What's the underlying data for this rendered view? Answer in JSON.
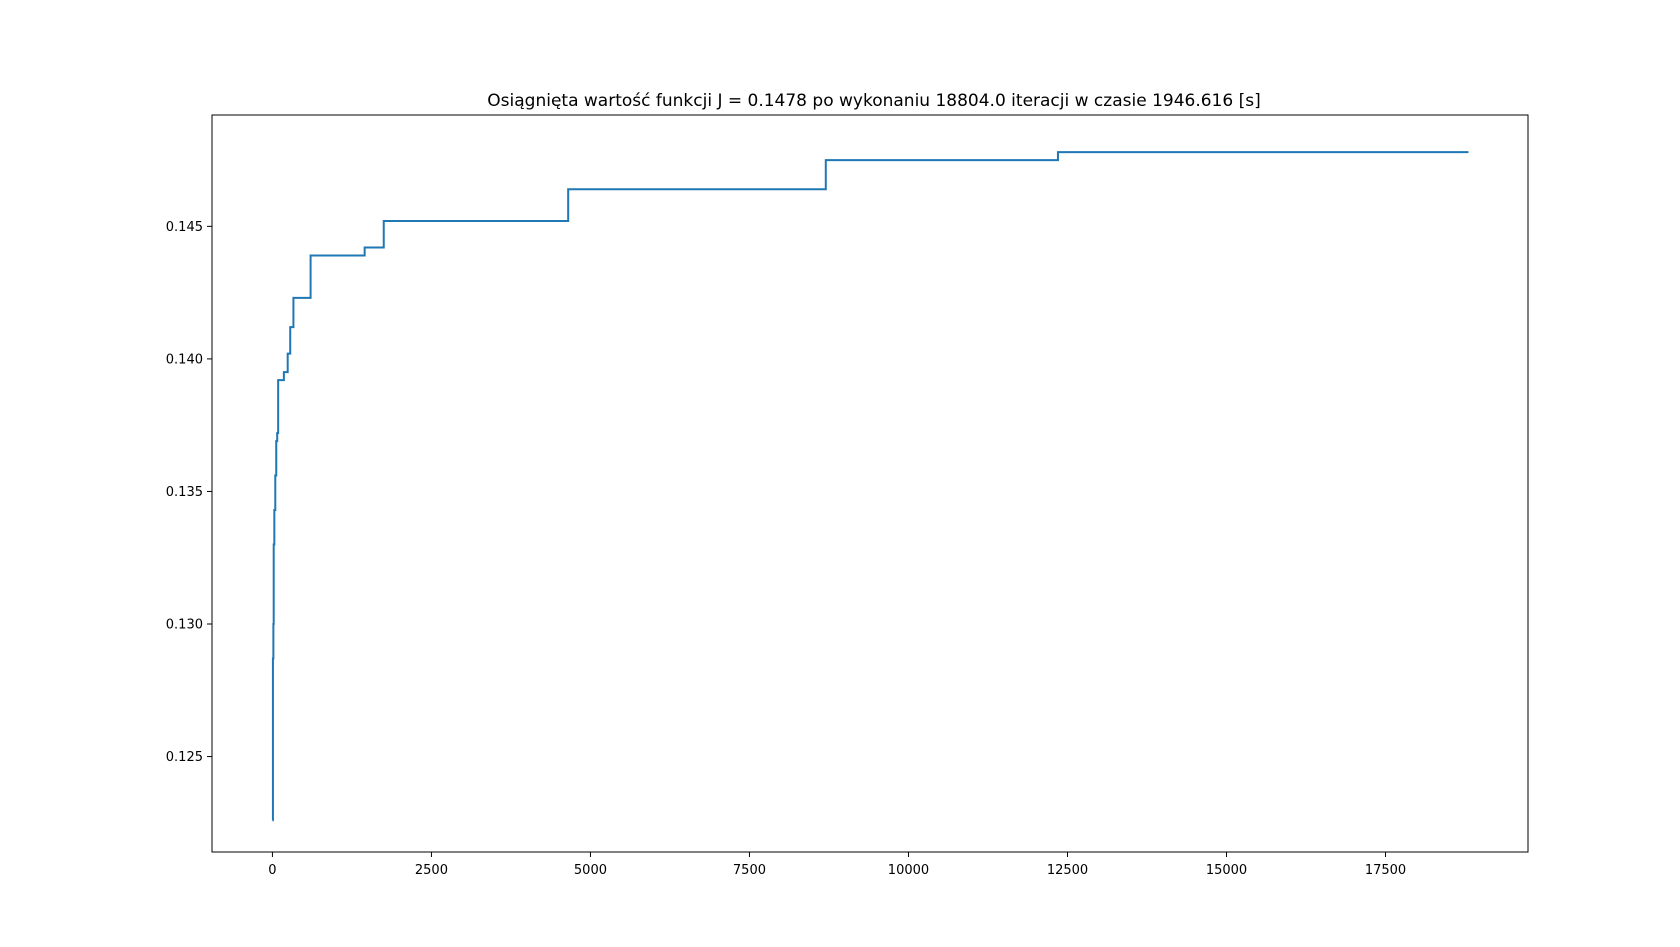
{
  "chart_data": {
    "type": "line",
    "title": "Osiągnięta wartość funkcji J = 0.1478 po wykonaniu 18804.0 iteracji w czasie 1946.616 [s]",
    "xlabel": "",
    "ylabel": "",
    "xlim": [
      -950,
      19740
    ],
    "ylim": [
      0.1214,
      0.1492
    ],
    "xticks": [
      0,
      2500,
      5000,
      7500,
      10000,
      12500,
      15000,
      17500
    ],
    "xtick_labels": [
      "0",
      "2500",
      "5000",
      "7500",
      "10000",
      "12500",
      "15000",
      "17500"
    ],
    "yticks": [
      0.125,
      0.13,
      0.135,
      0.14,
      0.145
    ],
    "ytick_labels": [
      "0.125",
      "0.130",
      "0.135",
      "0.140",
      "0.145"
    ],
    "grid": false,
    "line_color": "#1f77b4",
    "series": [
      {
        "step": "post",
        "x": [
          0,
          8,
          15,
          20,
          30,
          45,
          60,
          75,
          90,
          180,
          240,
          280,
          330,
          600,
          1450,
          1750,
          4650,
          8700,
          12350,
          18804
        ],
        "y": [
          0.1226,
          0.1287,
          0.13,
          0.133,
          0.1343,
          0.1356,
          0.1369,
          0.1372,
          0.1392,
          0.1395,
          0.1402,
          0.1412,
          0.1423,
          0.1439,
          0.1442,
          0.1452,
          0.1464,
          0.1475,
          0.1478,
          0.1478
        ]
      }
    ]
  }
}
